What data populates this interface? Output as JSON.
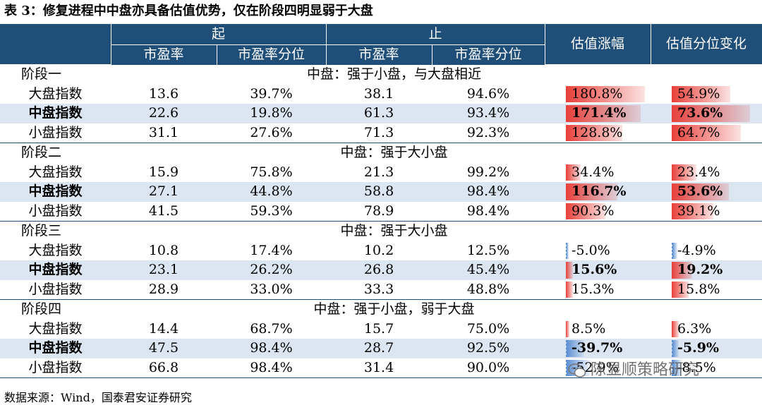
{
  "caption": "表 3：修复进程中中盘亦具备估值优势，仅在阶段四明显弱于大盘",
  "header": {
    "start": "起",
    "end": "止",
    "pe": "市盈率",
    "pe_pct": "市盈率分位",
    "val_change": "估值涨幅",
    "pct_change": "估值分位变化"
  },
  "colors": {
    "header_bg": "#1f4e79",
    "highlight_row": "#dbe6f2",
    "pos_bar": "#e8403a",
    "neg_bar": "#5b8fd4"
  },
  "stages": [
    {
      "label": "阶段一",
      "summary": "中盘：强于小盘，与大盘相近",
      "rows": [
        {
          "name": "大盘指数",
          "pe_start": "13.6",
          "pct_start": "39.7%",
          "pe_end": "38.1",
          "pct_end": "94.6%",
          "val_chg": "180.8%",
          "pct_chg": "54.9%",
          "val_level": 1.808,
          "pct_level": 0.549,
          "bold": false
        },
        {
          "name": "中盘指数",
          "pe_start": "22.6",
          "pct_start": "19.8%",
          "pe_end": "61.3",
          "pct_end": "93.4%",
          "val_chg": "171.4%",
          "pct_chg": "73.6%",
          "val_level": 1.714,
          "pct_level": 0.736,
          "bold": true
        },
        {
          "name": "小盘指数",
          "pe_start": "31.1",
          "pct_start": "27.6%",
          "pe_end": "71.3",
          "pct_end": "92.3%",
          "val_chg": "128.8%",
          "pct_chg": "64.7%",
          "val_level": 1.288,
          "pct_level": 0.647,
          "bold": false
        }
      ]
    },
    {
      "label": "阶段二",
      "summary": "中盘：强于大小盘",
      "rows": [
        {
          "name": "大盘指数",
          "pe_start": "15.9",
          "pct_start": "75.8%",
          "pe_end": "21.3",
          "pct_end": "99.2%",
          "val_chg": "34.4%",
          "pct_chg": "23.4%",
          "val_level": 0.344,
          "pct_level": 0.234,
          "bold": false
        },
        {
          "name": "中盘指数",
          "pe_start": "27.1",
          "pct_start": "44.8%",
          "pe_end": "58.8",
          "pct_end": "98.4%",
          "val_chg": "116.7%",
          "pct_chg": "53.6%",
          "val_level": 1.167,
          "pct_level": 0.536,
          "bold": true
        },
        {
          "name": "小盘指数",
          "pe_start": "41.5",
          "pct_start": "59.3%",
          "pe_end": "78.9",
          "pct_end": "98.4%",
          "val_chg": "90.3%",
          "pct_chg": "39.1%",
          "val_level": 0.903,
          "pct_level": 0.391,
          "bold": false
        }
      ]
    },
    {
      "label": "阶段三",
      "summary": "中盘：强于大小盘",
      "rows": [
        {
          "name": "大盘指数",
          "pe_start": "10.8",
          "pct_start": "17.4%",
          "pe_end": "10.2",
          "pct_end": "12.5%",
          "val_chg": "-5.0%",
          "pct_chg": "-4.9%",
          "val_level": -0.05,
          "pct_level": -0.049,
          "bold": false
        },
        {
          "name": "中盘指数",
          "pe_start": "23.1",
          "pct_start": "26.2%",
          "pe_end": "26.8",
          "pct_end": "45.4%",
          "val_chg": "15.6%",
          "pct_chg": "19.2%",
          "val_level": 0.156,
          "pct_level": 0.192,
          "bold": true
        },
        {
          "name": "小盘指数",
          "pe_start": "28.9",
          "pct_start": "33.0%",
          "pe_end": "33.3",
          "pct_end": "48.8%",
          "val_chg": "15.3%",
          "pct_chg": "15.8%",
          "val_level": 0.153,
          "pct_level": 0.158,
          "bold": false
        }
      ]
    },
    {
      "label": "阶段四",
      "summary": "中盘：强于小盘，弱于大盘",
      "rows": [
        {
          "name": "大盘指数",
          "pe_start": "14.4",
          "pct_start": "68.7%",
          "pe_end": "15.7",
          "pct_end": "75.0%",
          "val_chg": "8.5%",
          "pct_chg": "6.3%",
          "val_level": 0.085,
          "pct_level": 0.063,
          "bold": false
        },
        {
          "name": "中盘指数",
          "pe_start": "47.5",
          "pct_start": "98.4%",
          "pe_end": "28.7",
          "pct_end": "92.5%",
          "val_chg": "-39.7%",
          "pct_chg": "-5.9%",
          "val_level": -0.397,
          "pct_level": -0.059,
          "bold": true
        },
        {
          "name": "小盘指数",
          "pe_start": "66.8",
          "pct_start": "98.4%",
          "pe_end": "31.4",
          "pct_end": "90.0%",
          "val_chg": "-52.9%",
          "pct_chg": "-8.5%",
          "val_level": -0.529,
          "pct_level": -0.085,
          "bold": false
        }
      ]
    }
  ],
  "source": "数据来源：Wind，国泰君安证券研究",
  "watermark": "陈显顺策略研究"
}
